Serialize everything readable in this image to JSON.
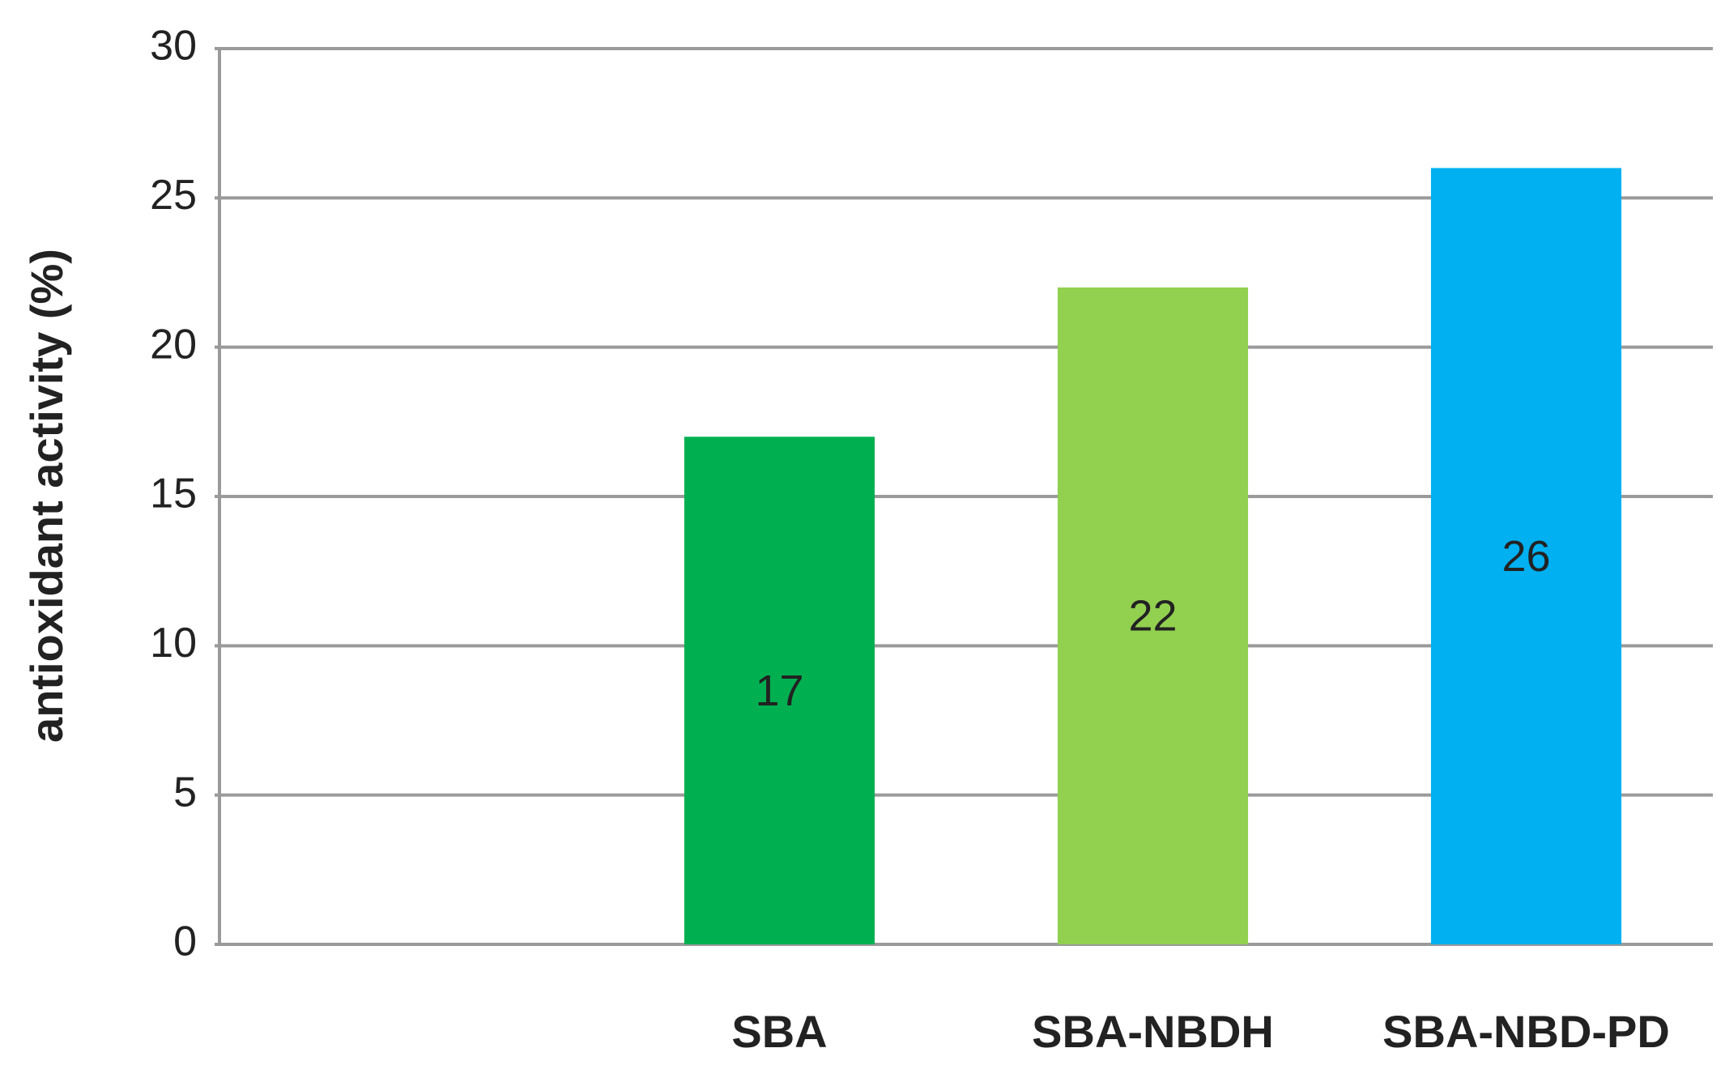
{
  "chart_data": {
    "type": "bar",
    "y_label": "antioxidant activity (%)",
    "categories": [
      null,
      "SBA",
      "SBA-NBDH",
      "SBA-NBD-PD"
    ],
    "values": [
      null,
      17,
      22,
      26
    ],
    "colors": [
      null,
      "#00b050",
      "#92d050",
      "#00b0f0"
    ],
    "ylim": [
      0,
      30
    ],
    "yticks": [
      0,
      5,
      10,
      15,
      20,
      25,
      30
    ],
    "grid": true
  }
}
